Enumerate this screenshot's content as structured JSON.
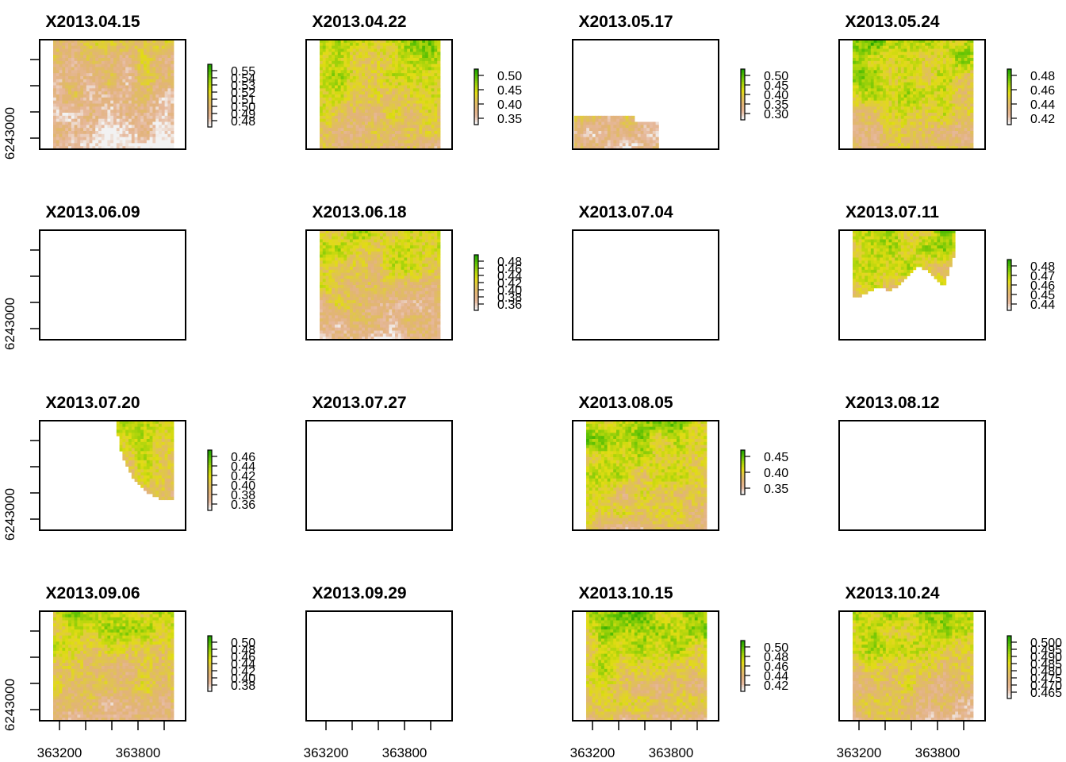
{
  "chart_data": {
    "type": "heatmap",
    "description": "Raster time series (4x4 small multiples) with shared axes",
    "layout": {
      "rows": 4,
      "cols": 4
    },
    "x_axis": {
      "ticks": [
        363200,
        363400,
        363600,
        363800,
        364000
      ],
      "tick_labels": [
        "363200",
        "363800"
      ]
    },
    "y_axis": {
      "label": "6243000"
    },
    "colormap": [
      "#f2f2f2",
      "#e6b89b",
      "#e2b37a",
      "#e0c255",
      "#e1dc13",
      "#a9d40b",
      "#5fc204",
      "#21a200"
    ],
    "panels": [
      {
        "title": "X2013.04.15",
        "pattern": "full",
        "vmin": 0.48,
        "vmax": 0.55,
        "bias": -0.18,
        "legend": {
          "values": [
            0.55,
            0.54,
            0.53,
            0.52,
            0.51,
            0.5,
            0.49,
            0.48
          ],
          "labels": [
            "0.55",
            "0.54",
            "0.53",
            "0.52",
            "0.51",
            "0.50",
            "0.49",
            "0.48"
          ]
        }
      },
      {
        "title": "X2013.04.22",
        "pattern": "full",
        "vmin": 0.35,
        "vmax": 0.51,
        "bias": 0.08,
        "legend": {
          "values": [
            0.5,
            0.45,
            0.4,
            0.35
          ],
          "labels": [
            "0.50",
            "0.45",
            "0.40",
            "0.35"
          ]
        }
      },
      {
        "title": "X2013.05.17",
        "pattern": "bottom-strip",
        "vmin": 0.29,
        "vmax": 0.51,
        "bias": -0.05,
        "legend": {
          "values": [
            0.5,
            0.45,
            0.4,
            0.35,
            0.3
          ],
          "labels": [
            "0.50",
            "0.45",
            "0.40",
            "0.35",
            "0.30"
          ]
        }
      },
      {
        "title": "X2013.05.24",
        "pattern": "full",
        "vmin": 0.42,
        "vmax": 0.49,
        "bias": 0.12,
        "legend": {
          "values": [
            0.48,
            0.46,
            0.44,
            0.42
          ],
          "labels": [
            "0.48",
            "0.46",
            "0.44",
            "0.42"
          ]
        }
      },
      {
        "title": "X2013.06.09",
        "pattern": "empty"
      },
      {
        "title": "X2013.06.18",
        "pattern": "full",
        "vmin": 0.36,
        "vmax": 0.48,
        "bias": 0.0,
        "legend": {
          "values": [
            0.48,
            0.46,
            0.44,
            0.42,
            0.4,
            0.38,
            0.36
          ],
          "labels": [
            "0.48",
            "0.46",
            "0.44",
            "0.42",
            "0.40",
            "0.38",
            "0.36"
          ]
        }
      },
      {
        "title": "X2013.07.04",
        "pattern": "empty"
      },
      {
        "title": "X2013.07.11",
        "pattern": "top-blob",
        "vmin": 0.44,
        "vmax": 0.48,
        "bias": 0.05,
        "legend": {
          "values": [
            0.48,
            0.47,
            0.46,
            0.45,
            0.44
          ],
          "labels": [
            "0.48",
            "0.47",
            "0.46",
            "0.45",
            "0.44"
          ]
        }
      },
      {
        "title": "X2013.07.20",
        "pattern": "top-right-corner",
        "vmin": 0.36,
        "vmax": 0.47,
        "bias": 0.05,
        "legend": {
          "values": [
            0.46,
            0.44,
            0.42,
            0.4,
            0.38,
            0.36
          ],
          "labels": [
            "0.46",
            "0.44",
            "0.42",
            "0.40",
            "0.38",
            "0.36"
          ]
        }
      },
      {
        "title": "X2013.07.27",
        "pattern": "empty"
      },
      {
        "title": "X2013.08.05",
        "pattern": "full",
        "vmin": 0.33,
        "vmax": 0.47,
        "bias": 0.1,
        "legend": {
          "values": [
            0.45,
            0.4,
            0.35
          ],
          "labels": [
            "0.45",
            "0.40",
            "0.35"
          ]
        }
      },
      {
        "title": "X2013.08.12",
        "pattern": "empty"
      },
      {
        "title": "X2013.09.06",
        "pattern": "full",
        "vmin": 0.38,
        "vmax": 0.5,
        "bias": 0.05,
        "legend": {
          "values": [
            0.5,
            0.48,
            0.46,
            0.44,
            0.42,
            0.4,
            0.38
          ],
          "labels": [
            "0.50",
            "0.48",
            "0.46",
            "0.44",
            "0.42",
            "0.40",
            "0.38"
          ]
        }
      },
      {
        "title": "X2013.09.29",
        "pattern": "empty"
      },
      {
        "title": "X2013.10.15",
        "pattern": "full",
        "vmin": 0.42,
        "vmax": 0.51,
        "bias": 0.12,
        "legend": {
          "values": [
            0.5,
            0.48,
            0.46,
            0.44,
            0.42
          ],
          "labels": [
            "0.50",
            "0.48",
            "0.46",
            "0.44",
            "0.42"
          ]
        }
      },
      {
        "title": "X2013.10.24",
        "pattern": "full",
        "vmin": 0.465,
        "vmax": 0.5,
        "bias": 0.05,
        "legend": {
          "values": [
            0.5,
            0.495,
            0.49,
            0.485,
            0.48,
            0.475,
            0.47,
            0.465
          ],
          "labels": [
            "0.500",
            "0.495",
            "0.490",
            "0.485",
            "0.480",
            "0.475",
            "0.470",
            "0.465"
          ]
        }
      }
    ]
  }
}
